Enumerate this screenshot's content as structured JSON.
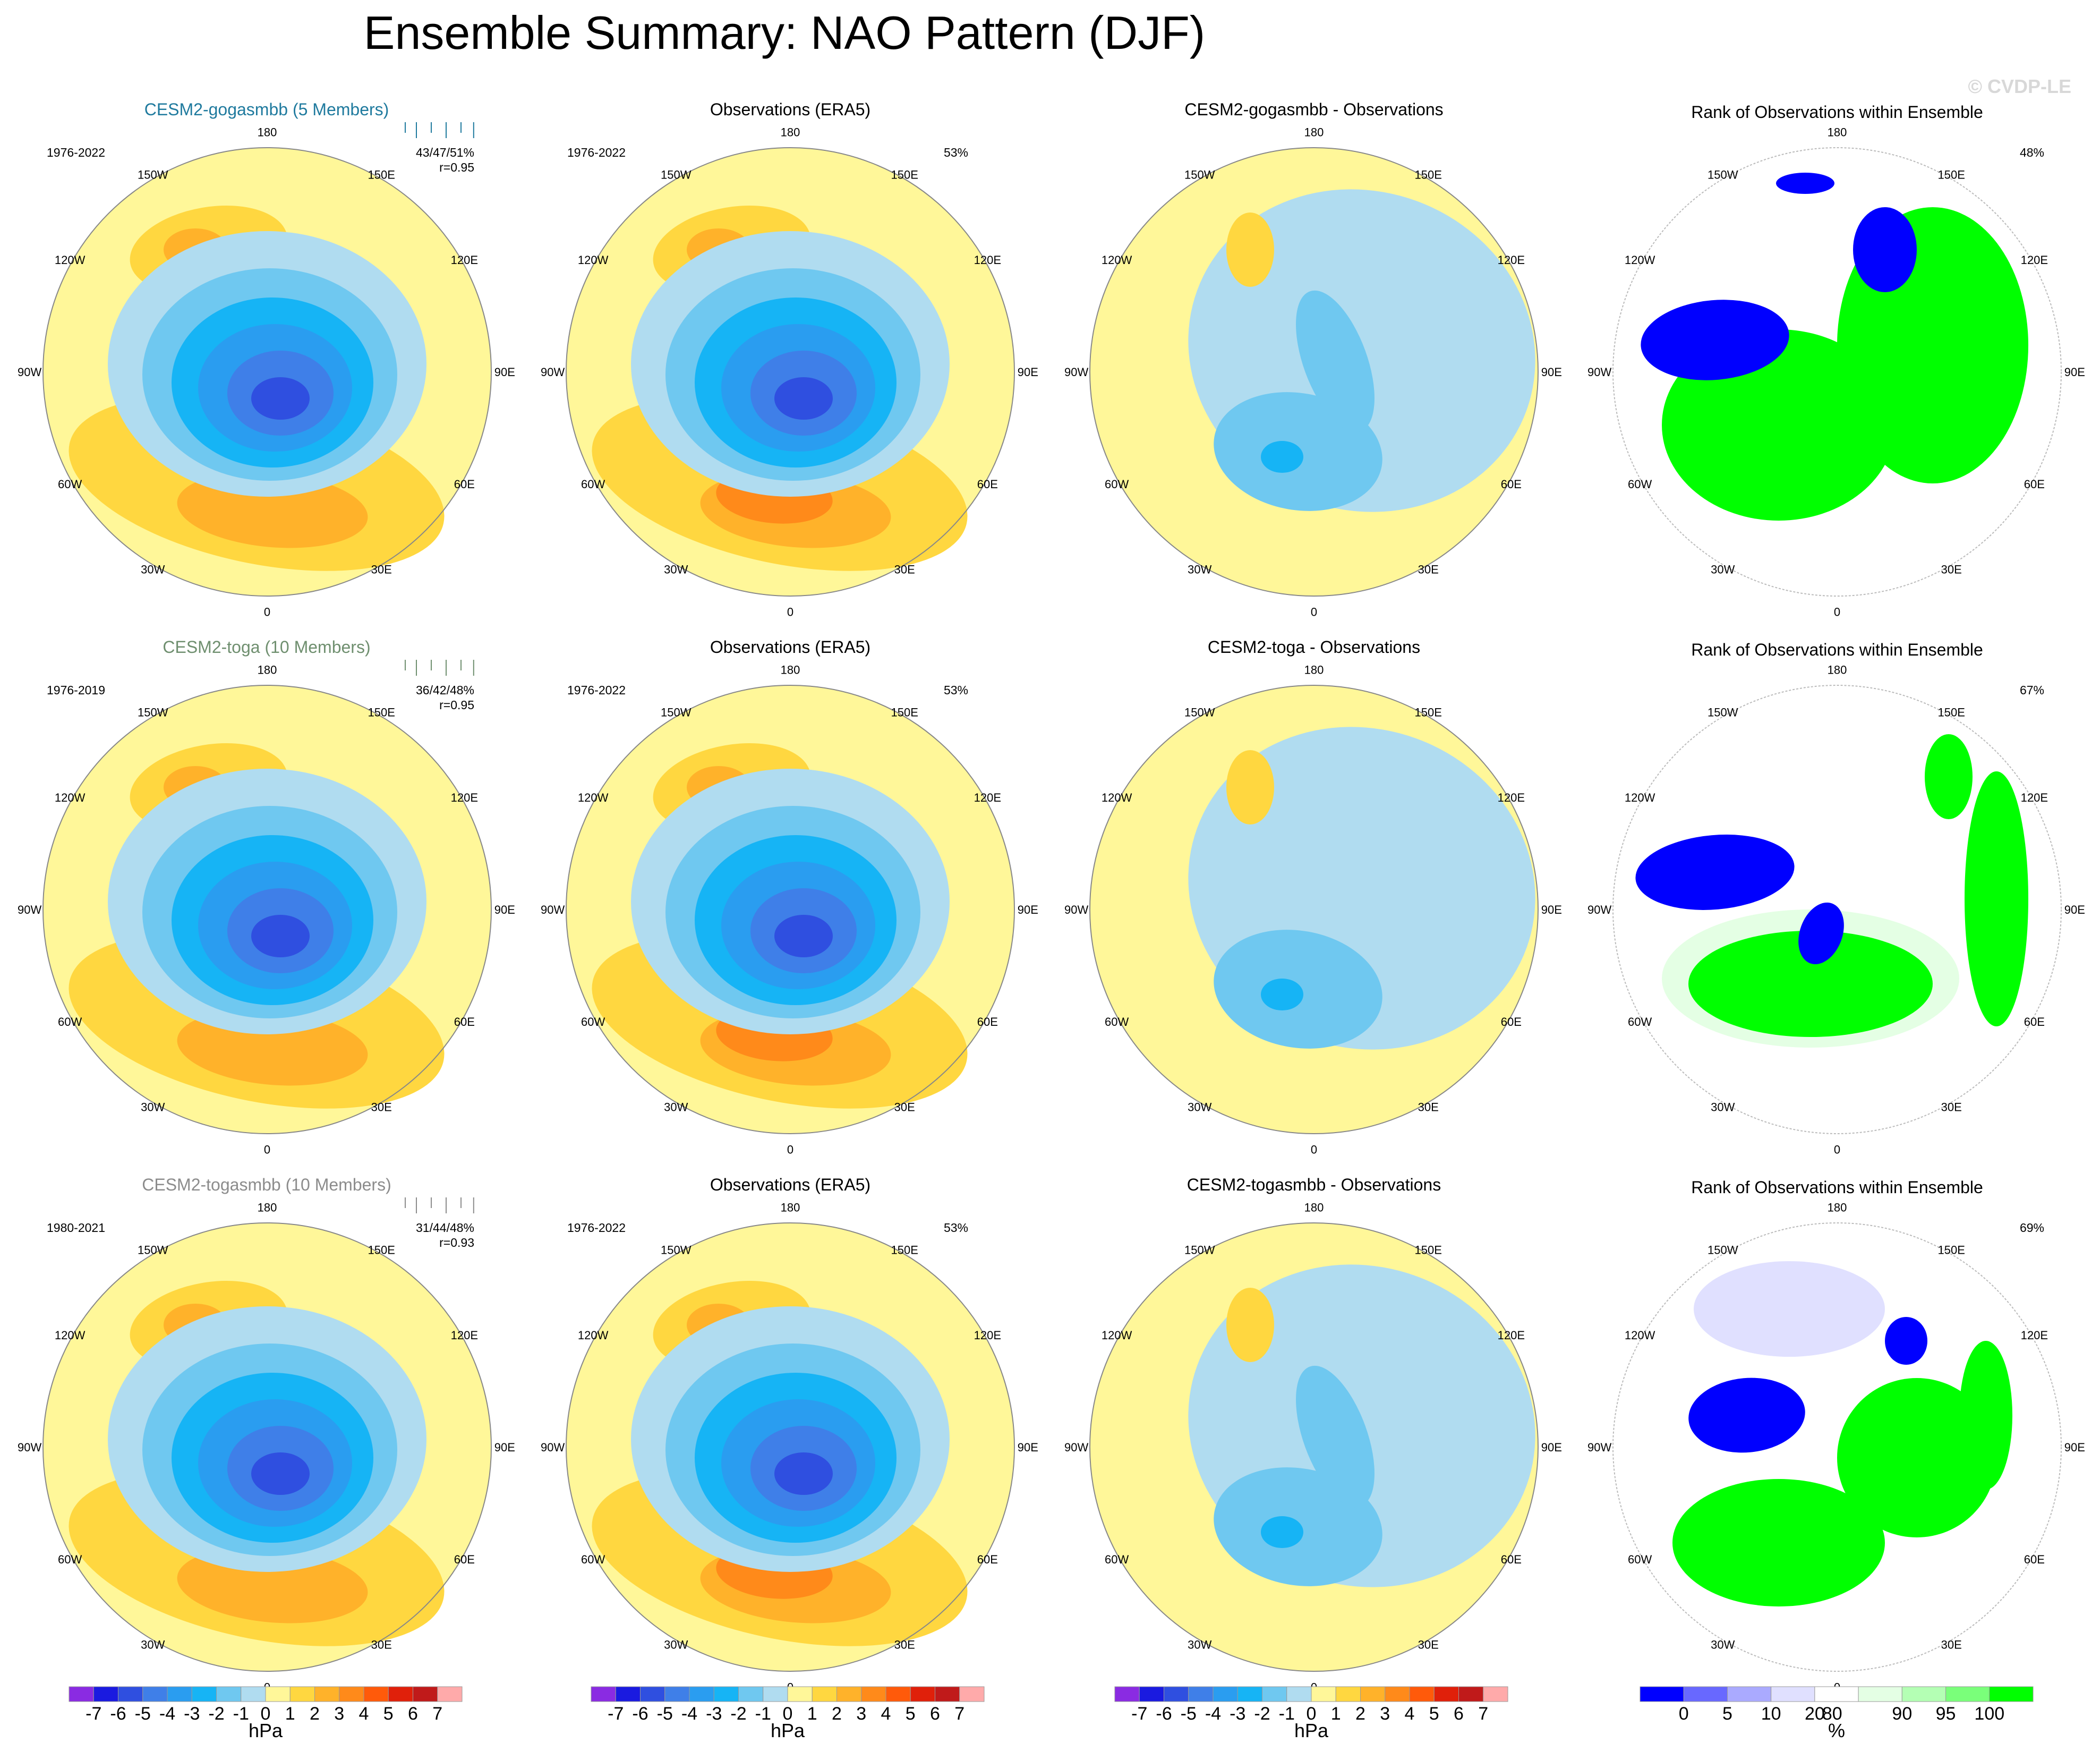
{
  "page": {
    "title": "Ensemble Summary: NAO Pattern (DJF)",
    "watermark": "© CVDP-LE"
  },
  "chart_data": {
    "type": "polar-contour-map",
    "variable": "sea level pressure",
    "units": "hPa",
    "longitude_labels": [
      "180",
      "150E",
      "120E",
      "90E",
      "60E",
      "30E",
      "0",
      "30W",
      "60W",
      "90W",
      "120W",
      "150W"
    ],
    "rows": [
      {
        "model": "CESM2-gogasmbb",
        "model_label": "CESM2-gogasmbb (5 Members)",
        "model_color": "#1f7a9e",
        "model_years": "1976-2022",
        "stats_line1": "43/47/51%",
        "stats_line2": "r=0.95",
        "obs_title": "Observations (ERA5)",
        "obs_years": "1976-2022",
        "obs_pct": "53%",
        "diff_title": "CESM2-gogasmbb - Observations",
        "rank_title": "Rank of Observations within Ensemble",
        "rank_pct": "48%"
      },
      {
        "model": "CESM2-toga",
        "model_label": "CESM2-toga (10 Members)",
        "model_color": "#6f8f6f",
        "model_years": "1976-2019",
        "stats_line1": "36/42/48%",
        "stats_line2": "r=0.95",
        "obs_title": "Observations (ERA5)",
        "obs_years": "1976-2022",
        "obs_pct": "53%",
        "diff_title": "CESM2-toga - Observations",
        "rank_title": "Rank of Observations within Ensemble",
        "rank_pct": "67%"
      },
      {
        "model": "CESM2-togasmbb",
        "model_label": "CESM2-togasmbb (10 Members)",
        "model_color": "#8c8c8c",
        "model_years": "1980-2021",
        "stats_line1": "31/44/48%",
        "stats_line2": "r=0.93",
        "obs_title": "Observations (ERA5)",
        "obs_years": "1976-2022",
        "obs_pct": "53%",
        "diff_title": "CESM2-togasmbb - Observations",
        "rank_title": "Rank of Observations within Ensemble",
        "rank_pct": "69%"
      }
    ],
    "slp_colorbar": {
      "label": "hPa",
      "ticks": [
        "-7",
        "-6",
        "-5",
        "-4",
        "-3",
        "-2",
        "-1",
        "0",
        "1",
        "2",
        "3",
        "4",
        "5",
        "6",
        "7"
      ],
      "colors": [
        "#8a2be2",
        "#1a1ae0",
        "#2f4fe0",
        "#3f7fe8",
        "#2a9df0",
        "#16b4f5",
        "#6fc8f0",
        "#b0dcf0",
        "#fff799",
        "#ffd740",
        "#ffb22a",
        "#ff8a1a",
        "#ff5a0a",
        "#e0200a",
        "#c01a1a",
        "#ffaaaa"
      ]
    },
    "rank_colorbar": {
      "label": "%",
      "ticks": [
        "0",
        "5",
        "10",
        "20",
        "80",
        "90",
        "95",
        "100"
      ],
      "colors": [
        "#0000ff",
        "#6868ff",
        "#aaaaff",
        "#e0e0ff",
        "#ffffff",
        "#e4ffe4",
        "#b4ffb4",
        "#7aff7a",
        "#00ff00"
      ]
    }
  }
}
